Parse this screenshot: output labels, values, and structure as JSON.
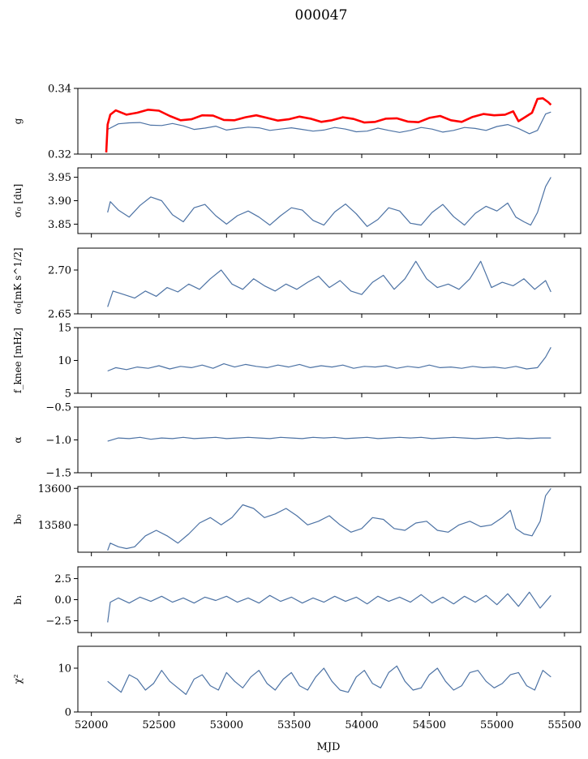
{
  "figure_title": "000047",
  "xlabel": "MJD",
  "x_ticks": [
    52000,
    52500,
    53000,
    53500,
    54000,
    54500,
    55000,
    55500
  ],
  "x_tick_labels": [
    "52000",
    "52500",
    "53000",
    "53500",
    "54000",
    "54500",
    "55000",
    "55500"
  ],
  "xlim": [
    51900,
    55620
  ],
  "chart_data": [
    {
      "type": "line",
      "ylabel": "g",
      "ylim": [
        0.32,
        0.34
      ],
      "y_ticks": [
        0.32,
        0.34
      ],
      "y_tick_labels": [
        "0.32",
        "0.34"
      ],
      "series": [
        {
          "color": "#4c72a4",
          "line_width": 1.2,
          "x": [
            52120,
            52200,
            52280,
            52360,
            52440,
            52520,
            52600,
            52680,
            52760,
            52840,
            52920,
            53000,
            53080,
            53160,
            53240,
            53320,
            53400,
            53480,
            53560,
            53640,
            53720,
            53800,
            53880,
            53960,
            54040,
            54120,
            54200,
            54280,
            54360,
            54440,
            54520,
            54600,
            54680,
            54760,
            54840,
            54920,
            55000,
            55080,
            55160,
            55240,
            55300,
            55360,
            55400
          ],
          "y": [
            0.3275,
            0.3292,
            0.3295,
            0.3296,
            0.3288,
            0.3287,
            0.3293,
            0.3286,
            0.3275,
            0.3279,
            0.3285,
            0.3273,
            0.3278,
            0.3282,
            0.328,
            0.3272,
            0.3276,
            0.328,
            0.3275,
            0.327,
            0.3273,
            0.3281,
            0.3276,
            0.3268,
            0.327,
            0.3279,
            0.3272,
            0.3266,
            0.3272,
            0.3281,
            0.3276,
            0.3267,
            0.3272,
            0.3281,
            0.3278,
            0.3272,
            0.3284,
            0.329,
            0.3278,
            0.3262,
            0.3272,
            0.3322,
            0.3328
          ]
        },
        {
          "color": "#ff0000",
          "line_width": 2.6,
          "x": [
            52110,
            52120,
            52140,
            52180,
            52260,
            52340,
            52420,
            52500,
            52580,
            52660,
            52740,
            52820,
            52900,
            52980,
            53060,
            53140,
            53220,
            53300,
            53380,
            53460,
            53540,
            53620,
            53700,
            53780,
            53860,
            53940,
            54020,
            54100,
            54180,
            54260,
            54340,
            54420,
            54500,
            54580,
            54660,
            54740,
            54820,
            54900,
            54980,
            55060,
            55120,
            55160,
            55200,
            55260,
            55300,
            55340,
            55380,
            55400
          ],
          "y": [
            0.3205,
            0.329,
            0.332,
            0.3333,
            0.332,
            0.3326,
            0.3335,
            0.3332,
            0.3316,
            0.3303,
            0.3306,
            0.3318,
            0.3317,
            0.3304,
            0.3303,
            0.3312,
            0.3318,
            0.331,
            0.3302,
            0.3306,
            0.3314,
            0.3308,
            0.3298,
            0.3303,
            0.3312,
            0.3307,
            0.3296,
            0.3298,
            0.3308,
            0.3309,
            0.3299,
            0.3297,
            0.331,
            0.3316,
            0.3303,
            0.3298,
            0.3313,
            0.3322,
            0.3318,
            0.332,
            0.333,
            0.33,
            0.331,
            0.3326,
            0.3368,
            0.337,
            0.3358,
            0.335
          ]
        }
      ]
    },
    {
      "type": "line",
      "ylabel": "σ₀ [du]",
      "ylim": [
        3.83,
        3.97
      ],
      "y_ticks": [
        3.85,
        3.9,
        3.95
      ],
      "y_tick_labels": [
        "3.85",
        "3.90",
        "3.95"
      ],
      "series": [
        {
          "color": "#4c72a4",
          "line_width": 1.2,
          "x": [
            52120,
            52140,
            52200,
            52280,
            52360,
            52440,
            52520,
            52600,
            52680,
            52760,
            52840,
            52920,
            53000,
            53080,
            53160,
            53240,
            53320,
            53400,
            53480,
            53560,
            53640,
            53720,
            53800,
            53880,
            53960,
            54040,
            54120,
            54200,
            54280,
            54360,
            54440,
            54520,
            54600,
            54680,
            54760,
            54840,
            54920,
            55000,
            55080,
            55140,
            55200,
            55250,
            55300,
            55360,
            55400
          ],
          "y": [
            3.875,
            3.898,
            3.88,
            3.865,
            3.89,
            3.908,
            3.9,
            3.87,
            3.855,
            3.885,
            3.892,
            3.868,
            3.85,
            3.868,
            3.878,
            3.865,
            3.848,
            3.868,
            3.885,
            3.88,
            3.858,
            3.848,
            3.876,
            3.893,
            3.872,
            3.845,
            3.86,
            3.885,
            3.878,
            3.852,
            3.848,
            3.875,
            3.892,
            3.866,
            3.848,
            3.873,
            3.888,
            3.878,
            3.895,
            3.865,
            3.855,
            3.848,
            3.875,
            3.93,
            3.95
          ]
        }
      ]
    },
    {
      "type": "line",
      "ylabel": "σ₀[mK s^1/2]",
      "ylim": [
        2.65,
        2.725
      ],
      "y_ticks": [
        2.65,
        2.7
      ],
      "y_tick_labels": [
        "2.65",
        "2.70"
      ],
      "series": [
        {
          "color": "#4c72a4",
          "line_width": 1.2,
          "x": [
            52120,
            52160,
            52240,
            52320,
            52400,
            52480,
            52560,
            52640,
            52720,
            52800,
            52880,
            52960,
            53040,
            53120,
            53200,
            53280,
            53360,
            53440,
            53520,
            53600,
            53680,
            53760,
            53840,
            53920,
            54000,
            54080,
            54160,
            54240,
            54320,
            54400,
            54480,
            54560,
            54640,
            54720,
            54800,
            54880,
            54960,
            55040,
            55120,
            55200,
            55280,
            55360,
            55400
          ],
          "y": [
            2.658,
            2.676,
            2.672,
            2.668,
            2.676,
            2.67,
            2.68,
            2.675,
            2.684,
            2.678,
            2.69,
            2.7,
            2.684,
            2.678,
            2.69,
            2.682,
            2.676,
            2.684,
            2.678,
            2.686,
            2.693,
            2.68,
            2.688,
            2.676,
            2.672,
            2.686,
            2.694,
            2.678,
            2.69,
            2.71,
            2.69,
            2.68,
            2.684,
            2.678,
            2.69,
            2.71,
            2.68,
            2.686,
            2.682,
            2.69,
            2.678,
            2.688,
            2.675
          ]
        }
      ]
    },
    {
      "type": "line",
      "ylabel": "f_knee [mHz]",
      "ylim": [
        5,
        15
      ],
      "y_ticks": [
        5,
        10,
        15
      ],
      "y_tick_labels": [
        "5",
        "10",
        "15"
      ],
      "series": [
        {
          "color": "#4c72a4",
          "line_width": 1.2,
          "x": [
            52120,
            52180,
            52260,
            52340,
            52420,
            52500,
            52580,
            52660,
            52740,
            52820,
            52900,
            52980,
            53060,
            53140,
            53220,
            53300,
            53380,
            53460,
            53540,
            53620,
            53700,
            53780,
            53860,
            53940,
            54020,
            54100,
            54180,
            54260,
            54340,
            54420,
            54500,
            54580,
            54660,
            54740,
            54820,
            54900,
            54980,
            55060,
            55140,
            55220,
            55300,
            55360,
            55400
          ],
          "y": [
            8.4,
            8.9,
            8.6,
            9.0,
            8.8,
            9.2,
            8.7,
            9.1,
            8.9,
            9.3,
            8.8,
            9.5,
            9.0,
            9.4,
            9.1,
            8.9,
            9.3,
            9.0,
            9.4,
            8.9,
            9.2,
            9.0,
            9.3,
            8.8,
            9.1,
            9.0,
            9.2,
            8.8,
            9.1,
            8.9,
            9.3,
            8.9,
            9.0,
            8.8,
            9.1,
            8.9,
            9.0,
            8.8,
            9.1,
            8.7,
            8.9,
            10.5,
            12.0
          ]
        }
      ]
    },
    {
      "type": "line",
      "ylabel": "α",
      "ylim": [
        -1.5,
        -0.5
      ],
      "y_ticks": [
        -1.5,
        -1.0,
        -0.5
      ],
      "y_tick_labels": [
        "−1.5",
        "−1.0",
        "−0.5"
      ],
      "series": [
        {
          "color": "#4c72a4",
          "line_width": 1.2,
          "x": [
            52120,
            52200,
            52280,
            52360,
            52440,
            52520,
            52600,
            52680,
            52760,
            52840,
            52920,
            53000,
            53080,
            53160,
            53240,
            53320,
            53400,
            53480,
            53560,
            53640,
            53720,
            53800,
            53880,
            53960,
            54040,
            54120,
            54200,
            54280,
            54360,
            54440,
            54520,
            54600,
            54680,
            54760,
            54840,
            54920,
            55000,
            55080,
            55160,
            55240,
            55320,
            55400
          ],
          "y": [
            -1.02,
            -0.97,
            -0.98,
            -0.96,
            -0.99,
            -0.97,
            -0.98,
            -0.96,
            -0.98,
            -0.97,
            -0.96,
            -0.98,
            -0.97,
            -0.96,
            -0.97,
            -0.98,
            -0.96,
            -0.97,
            -0.98,
            -0.96,
            -0.97,
            -0.96,
            -0.98,
            -0.97,
            -0.96,
            -0.98,
            -0.97,
            -0.96,
            -0.97,
            -0.96,
            -0.98,
            -0.97,
            -0.96,
            -0.97,
            -0.98,
            -0.97,
            -0.96,
            -0.98,
            -0.97,
            -0.98,
            -0.97,
            -0.97
          ]
        }
      ]
    },
    {
      "type": "line",
      "ylabel": "b₀",
      "ylim": [
        13565,
        13601
      ],
      "y_ticks": [
        13580,
        13600
      ],
      "y_tick_labels": [
        "13580",
        "13600"
      ],
      "series": [
        {
          "color": "#4c72a4",
          "line_width": 1.2,
          "x": [
            52120,
            52140,
            52200,
            52260,
            52320,
            52400,
            52480,
            52560,
            52640,
            52720,
            52800,
            52880,
            52960,
            53040,
            53120,
            53200,
            53280,
            53360,
            53440,
            53520,
            53600,
            53680,
            53760,
            53840,
            53920,
            54000,
            54080,
            54160,
            54240,
            54320,
            54400,
            54480,
            54560,
            54640,
            54720,
            54800,
            54880,
            54960,
            55040,
            55100,
            55140,
            55200,
            55260,
            55320,
            55360,
            55400
          ],
          "y": [
            13566,
            13570,
            13568,
            13567,
            13568,
            13574,
            13577,
            13574,
            13570,
            13575,
            13581,
            13584,
            13580,
            13584,
            13591,
            13589,
            13584,
            13586,
            13589,
            13585,
            13580,
            13582,
            13585,
            13580,
            13576,
            13578,
            13584,
            13583,
            13578,
            13577,
            13581,
            13582,
            13577,
            13576,
            13580,
            13582,
            13579,
            13580,
            13584,
            13588,
            13578,
            13575,
            13574,
            13582,
            13596,
            13600
          ]
        }
      ]
    },
    {
      "type": "line",
      "ylabel": "b₁",
      "ylim": [
        -3.9,
        3.9
      ],
      "y_ticks": [
        -2.5,
        0.0,
        2.5
      ],
      "y_tick_labels": [
        "−2.5",
        "0.0",
        "2.5"
      ],
      "series": [
        {
          "color": "#4c72a4",
          "line_width": 1.2,
          "x": [
            52120,
            52140,
            52200,
            52280,
            52360,
            52440,
            52520,
            52600,
            52680,
            52760,
            52840,
            52920,
            53000,
            53080,
            53160,
            53240,
            53320,
            53400,
            53480,
            53560,
            53640,
            53720,
            53800,
            53880,
            53960,
            54040,
            54120,
            54200,
            54280,
            54360,
            54440,
            54520,
            54600,
            54680,
            54760,
            54840,
            54920,
            55000,
            55080,
            55160,
            55240,
            55320,
            55400
          ],
          "y": [
            -2.7,
            -0.3,
            0.2,
            -0.4,
            0.3,
            -0.2,
            0.4,
            -0.3,
            0.2,
            -0.4,
            0.3,
            -0.1,
            0.4,
            -0.3,
            0.2,
            -0.4,
            0.5,
            -0.2,
            0.3,
            -0.4,
            0.2,
            -0.3,
            0.4,
            -0.2,
            0.3,
            -0.5,
            0.4,
            -0.2,
            0.3,
            -0.3,
            0.6,
            -0.4,
            0.3,
            -0.5,
            0.4,
            -0.3,
            0.5,
            -0.6,
            0.7,
            -0.8,
            0.9,
            -1.0,
            0.5
          ]
        }
      ]
    },
    {
      "type": "line",
      "ylabel": "χ²",
      "ylim": [
        0,
        15
      ],
      "y_ticks": [
        0,
        10
      ],
      "y_tick_labels": [
        "0",
        "10"
      ],
      "series": [
        {
          "color": "#4c72a4",
          "line_width": 1.2,
          "x": [
            52120,
            52160,
            52220,
            52280,
            52340,
            52400,
            52460,
            52520,
            52580,
            52640,
            52700,
            52760,
            52820,
            52880,
            52940,
            53000,
            53060,
            53120,
            53180,
            53240,
            53300,
            53360,
            53420,
            53480,
            53540,
            53600,
            53660,
            53720,
            53780,
            53840,
            53900,
            53960,
            54020,
            54080,
            54140,
            54200,
            54260,
            54320,
            54380,
            54440,
            54500,
            54560,
            54620,
            54680,
            54740,
            54800,
            54860,
            54920,
            54980,
            55040,
            55100,
            55160,
            55220,
            55280,
            55340,
            55400
          ],
          "y": [
            7.0,
            6.0,
            4.5,
            8.5,
            7.5,
            5.0,
            6.5,
            9.5,
            7.0,
            5.5,
            4.0,
            7.5,
            8.5,
            6.0,
            5.0,
            9.0,
            7.0,
            5.5,
            8.0,
            9.5,
            6.5,
            5.0,
            7.5,
            9.0,
            6.0,
            5.0,
            8.0,
            10.0,
            7.0,
            5.0,
            4.5,
            8.0,
            9.5,
            6.5,
            5.5,
            9.0,
            10.5,
            7.0,
            5.0,
            5.5,
            8.5,
            10.0,
            7.0,
            5.0,
            6.0,
            9.0,
            9.5,
            7.0,
            5.5,
            6.5,
            8.5,
            9.0,
            6.0,
            5.0,
            9.5,
            8.0
          ]
        }
      ]
    }
  ]
}
